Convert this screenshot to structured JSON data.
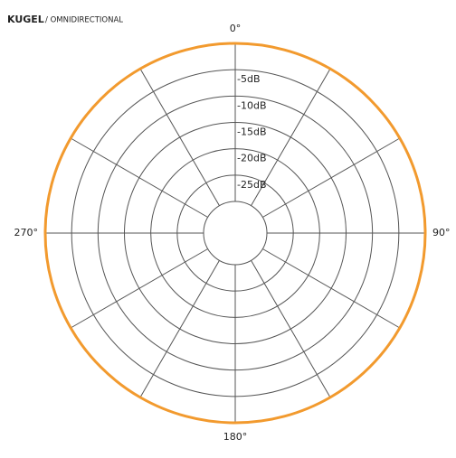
{
  "chart_data": {
    "type": "polar",
    "title": "KUGEL",
    "subtitle": "/ OMNIDIRECTIONAL",
    "color": "#f29a2e",
    "theta": [
      0,
      30,
      60,
      90,
      120,
      150,
      180,
      210,
      240,
      270,
      300,
      330
    ],
    "values": [
      0,
      0,
      0,
      0,
      0,
      0,
      0,
      0,
      0,
      0,
      0,
      0
    ],
    "rlim": [
      -30,
      0
    ],
    "rticks": [
      {
        "value": -5,
        "label": "-5dB"
      },
      {
        "value": -10,
        "label": "-10dB"
      },
      {
        "value": -15,
        "label": "-15dB"
      },
      {
        "value": -20,
        "label": "-20dB"
      },
      {
        "value": -25,
        "label": "-25dB"
      }
    ],
    "thetaticks": [
      {
        "value": 0,
        "label": "0°"
      },
      {
        "value": 90,
        "label": "90°"
      },
      {
        "value": 180,
        "label": "180°"
      },
      {
        "value": 270,
        "label": "270°"
      }
    ]
  }
}
